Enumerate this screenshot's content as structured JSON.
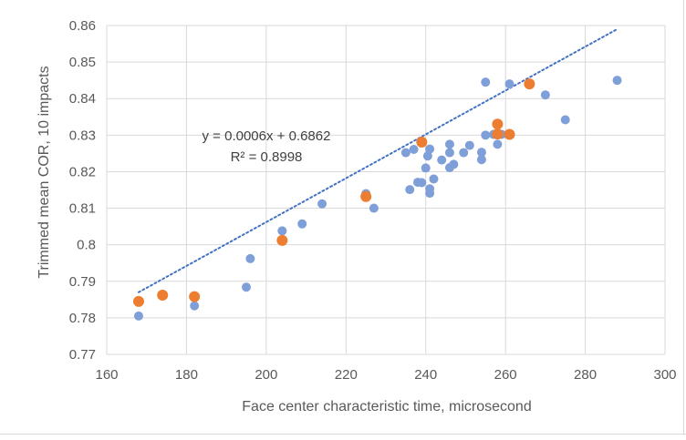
{
  "chart_data": {
    "type": "scatter",
    "xlabel": "Face center characteristic time, microsecond",
    "ylabel": "Trimmed mean COR, 10 impacts",
    "xlim": [
      160,
      300
    ],
    "ylim": [
      0.77,
      0.86
    ],
    "x_ticks": [
      "160",
      "180",
      "200",
      "220",
      "240",
      "260",
      "280",
      "300"
    ],
    "y_ticks": [
      "0.77",
      "0.78",
      "0.79",
      "0.8",
      "0.81",
      "0.82",
      "0.83",
      "0.84",
      "0.85",
      "0.86"
    ],
    "grid": true,
    "series": [
      {
        "color": "#7f9fd8",
        "points": [
          [
            168.0,
            0.7805
          ],
          [
            182.0,
            0.7833
          ],
          [
            195.0,
            0.7884
          ],
          [
            196.0,
            0.7962
          ],
          [
            204.0,
            0.8038
          ],
          [
            209.0,
            0.8057
          ],
          [
            214.0,
            0.8112
          ],
          [
            225.0,
            0.814
          ],
          [
            227.0,
            0.81
          ],
          [
            235.0,
            0.8252
          ],
          [
            236.0,
            0.8151
          ],
          [
            237.0,
            0.8261
          ],
          [
            238.0,
            0.8171
          ],
          [
            239.0,
            0.817
          ],
          [
            240.0,
            0.821
          ],
          [
            240.5,
            0.8243
          ],
          [
            241.0,
            0.8262
          ],
          [
            241.0,
            0.8153
          ],
          [
            241.0,
            0.8141
          ],
          [
            242.0,
            0.818
          ],
          [
            244.0,
            0.8232
          ],
          [
            246.0,
            0.8275
          ],
          [
            246.0,
            0.8252
          ],
          [
            246.0,
            0.8211
          ],
          [
            247.0,
            0.822
          ],
          [
            249.5,
            0.8252
          ],
          [
            251.0,
            0.8272
          ],
          [
            254.0,
            0.8253
          ],
          [
            254.0,
            0.8233
          ],
          [
            255.0,
            0.8445
          ],
          [
            255.0,
            0.83
          ],
          [
            257.0,
            0.8302
          ],
          [
            258.0,
            0.8275
          ],
          [
            259.0,
            0.8302
          ],
          [
            261.0,
            0.844
          ],
          [
            270.0,
            0.841
          ],
          [
            275.0,
            0.8342
          ],
          [
            288.0,
            0.845
          ]
        ]
      },
      {
        "color": "#ed7d31",
        "points": [
          [
            168.0,
            0.7845
          ],
          [
            174.0,
            0.7862
          ],
          [
            182.0,
            0.7858
          ],
          [
            204.0,
            0.8012
          ],
          [
            225.0,
            0.8132
          ],
          [
            239.0,
            0.8281
          ],
          [
            258.0,
            0.833
          ],
          [
            258.0,
            0.8303
          ],
          [
            261.0,
            0.8302
          ],
          [
            266.0,
            0.844
          ]
        ]
      }
    ],
    "trendline": {
      "type": "linear",
      "color": "#4472c4",
      "slope": 0.0006,
      "intercept": 0.6862,
      "x_range": [
        168,
        288
      ],
      "equation": "y = 0.0006x + 0.6862",
      "r_squared": "R² = 0.8998"
    }
  }
}
